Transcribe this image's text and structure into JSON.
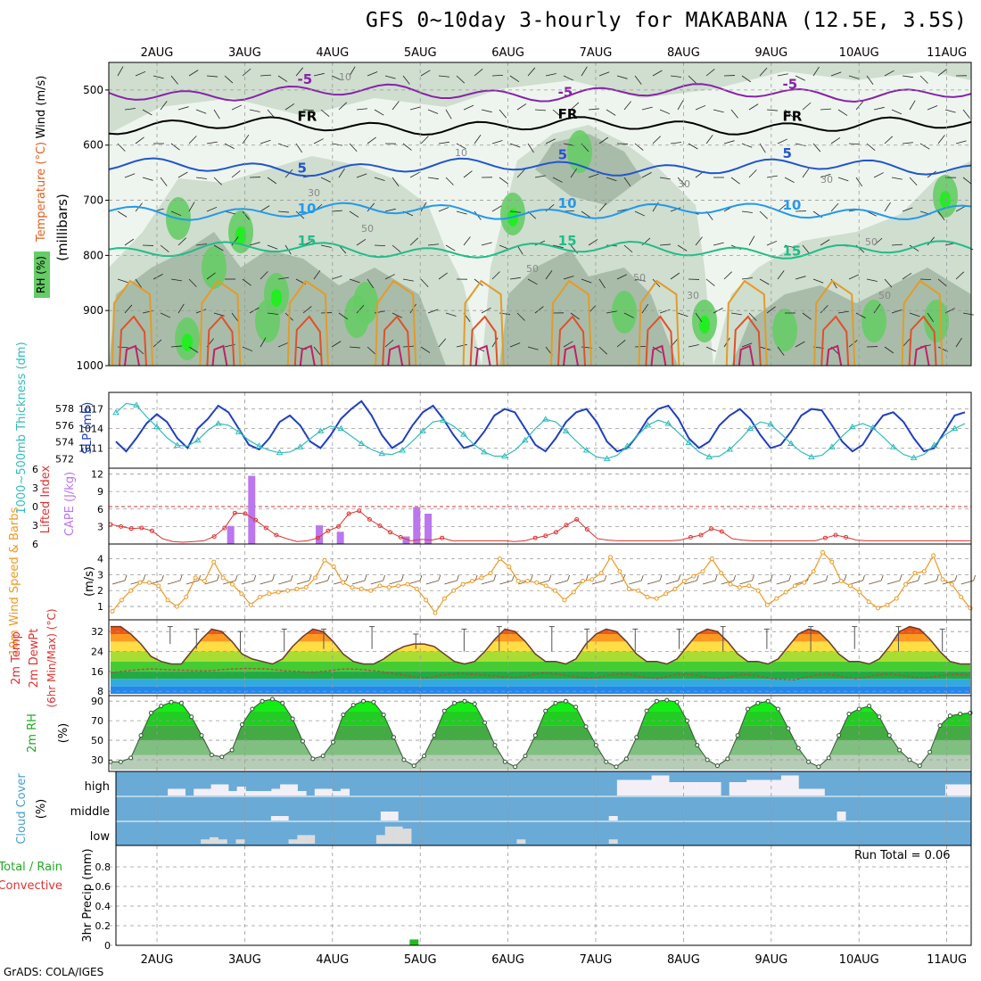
{
  "header": {
    "title": "GFS 0~10day 3-hourly for MAKABANA (12.5E, 3.5S)",
    "credit": "GrADS: COLA/IGES",
    "run_total": "Run Total = 0.06"
  },
  "colors": {
    "rh_light": "#eef5ee",
    "rh_mid": "#cfdecf",
    "rh_dark": "#a9bca9",
    "rh_green": "#66cc66",
    "rh_bright": "#22ee22",
    "temp_15": "#22bb88",
    "temp_10": "#2299ee",
    "temp_5": "#2255cc",
    "temp_m5": "#8822aa",
    "slp": "#1f3fbf",
    "thickness": "#33bbbb",
    "cape": "#bb77ee",
    "lifted": "#dd3333",
    "wind": "#ee9922",
    "cloud_bg": "#6aaad6",
    "cloud_fill": "#f3eff6",
    "precip": "#22bb22"
  },
  "chart_data": [
    {
      "type": "heatmap",
      "panel": "upper-air",
      "ylabel": "(millibars)",
      "axis_labels": [
        "RH (%)",
        "Temperature (°C)",
        "Wind (m/s)"
      ],
      "x_ticks": [
        "2AUG",
        "3AUG",
        "4AUG",
        "5AUG",
        "6AUG",
        "7AUG",
        "8AUG",
        "9AUG",
        "10AUG",
        "11AUG"
      ],
      "y_ticks": [
        500,
        600,
        700,
        800,
        900,
        1000
      ],
      "ylim": [
        1000,
        450
      ],
      "isotherms": [
        {
          "label": "-5",
          "level_mb": 505
        },
        {
          "label": "FR",
          "level_mb": 565
        },
        {
          "label": "5",
          "level_mb": 640
        },
        {
          "label": "10",
          "level_mb": 720
        },
        {
          "label": "15",
          "level_mb": 790
        }
      ],
      "rh_contour_labels": [
        "10",
        "30",
        "50"
      ]
    },
    {
      "type": "line",
      "panel": "slp-thickness",
      "axis_labels": [
        "1000~500mb Thickness (dm)",
        "SLP (mb)"
      ],
      "thickness_ticks": [
        572,
        574,
        576,
        578
      ],
      "slp_ticks": [
        1011,
        1014,
        1017
      ],
      "series": [
        {
          "name": "SLP (mb)",
          "values": [
            1012.0,
            1010.5,
            1012.5,
            1014.8,
            1016.2,
            1015.0,
            1012.5,
            1011.0,
            1014.0,
            1015.5,
            1017.5,
            1016.5,
            1014.0,
            1011.5,
            1010.8,
            1012.5,
            1015.0,
            1016.0,
            1014.5,
            1012.0,
            1011.0,
            1013.0,
            1015.5,
            1017.0,
            1018.2,
            1016.0,
            1013.0,
            1011.0,
            1012.0,
            1014.5,
            1016.5,
            1017.5,
            1015.5,
            1013.0,
            1011.0,
            1011.5,
            1013.5,
            1016.0,
            1017.0,
            1016.5,
            1014.0,
            1011.5,
            1010.5,
            1012.5,
            1015.0,
            1016.5,
            1017.0,
            1015.0,
            1012.0,
            1010.5,
            1011.0,
            1013.0,
            1015.5,
            1017.0,
            1017.5,
            1015.5,
            1012.5,
            1011.0,
            1012.0,
            1014.5,
            1016.0,
            1017.0,
            1015.5,
            1013.0,
            1011.0,
            1011.5,
            1013.5,
            1016.0,
            1017.0,
            1016.8,
            1014.5,
            1012.0,
            1010.5,
            1011.5,
            1014.0,
            1016.0,
            1016.5,
            1015.0,
            1012.5,
            1010.5,
            1011.0,
            1013.5,
            1016.0,
            1016.5
          ]
        },
        {
          "name": "Thickness (dm)",
          "values": [
            577.5,
            578.6,
            578.4,
            577.0,
            575.8,
            574.5,
            573.6,
            573.5,
            574.2,
            575.4,
            576.2,
            576.0,
            575.2,
            574.2,
            573.5,
            573.0,
            572.7,
            572.8,
            573.4,
            574.4,
            575.3,
            575.9,
            575.6,
            574.7,
            573.8,
            573.1,
            572.6,
            572.5,
            573.0,
            574.1,
            575.3,
            576.4,
            576.6,
            575.9,
            574.9,
            573.7,
            572.8,
            572.3,
            572.3,
            573.0,
            574.2,
            575.6,
            576.7,
            576.4,
            575.3,
            574.1,
            573.0,
            572.2,
            572.0,
            572.4,
            573.5,
            574.8,
            576.0,
            576.6,
            576.2,
            575.1,
            573.9,
            572.8,
            572.2,
            572.3,
            573.1,
            574.3,
            575.6,
            576.4,
            576.1,
            575.0,
            573.8,
            572.8,
            572.2,
            572.4,
            573.4,
            574.7,
            575.8,
            576.2,
            575.7,
            574.6,
            573.4,
            572.5,
            572.1,
            572.5,
            573.6,
            574.8,
            575.6,
            576.2
          ]
        }
      ]
    },
    {
      "type": "bar",
      "panel": "cape-li",
      "axis_labels": [
        "Lifted Index",
        "CAPE (J/kg)"
      ],
      "cape_ticks": [
        3,
        6,
        9,
        12
      ],
      "li_ticks": [
        6,
        3,
        0,
        -3,
        -6
      ],
      "cape_bars": [
        {
          "x": 0.84,
          "value": 3.1
        },
        {
          "x": 1.08,
          "value": 11.7
        },
        {
          "x": 1.85,
          "value": 3.2
        },
        {
          "x": 2.09,
          "value": 2.1
        },
        {
          "x": 2.84,
          "value": 1.3
        },
        {
          "x": 2.96,
          "value": 6.3
        },
        {
          "x": 3.09,
          "value": 5.2
        }
      ],
      "lifted_index": [
        3.5,
        3.8,
        4.1,
        4.0,
        4.4,
        5.5,
        5.9,
        6.0,
        5.9,
        5.8,
        5.2,
        4.0,
        1.9,
        2.0,
        2.9,
        4.0,
        5.0,
        5.5,
        5.9,
        5.8,
        5.4,
        4.4,
        3.8,
        2.0,
        1.6,
        2.8,
        3.7,
        4.6,
        5.3,
        5.8,
        5.6,
        5.7,
        5.4,
        5.8,
        5.8,
        5.8,
        5.8,
        5.8,
        5.8,
        5.9,
        5.8,
        5.4,
        5.1,
        4.6,
        3.6,
        2.8,
        4.2,
        5.5,
        5.7,
        5.8,
        5.8,
        5.8,
        5.8,
        5.8,
        5.8,
        5.7,
        5.3,
        5.0,
        4.1,
        4.5,
        5.5,
        5.7,
        5.8,
        5.8,
        5.8,
        5.8,
        5.8,
        5.8,
        5.8,
        5.4,
        5.0,
        5.3,
        5.7,
        5.8,
        5.8,
        5.8,
        5.8,
        5.8,
        5.8,
        5.8,
        5.8,
        5.8,
        5.8,
        5.8
      ]
    },
    {
      "type": "line",
      "panel": "wind10m",
      "axis_labels": [
        "10m Wind Speed & Barbs",
        "(m/s)"
      ],
      "y_ticks": [
        1,
        2,
        3,
        4
      ],
      "values": [
        0.7,
        1.4,
        2.0,
        2.5,
        2.5,
        2.3,
        1.4,
        1.0,
        1.6,
        2.8,
        2.6,
        3.8,
        2.8,
        2.4,
        1.8,
        1.1,
        1.6,
        1.8,
        1.9,
        2.0,
        2.1,
        2.2,
        2.8,
        3.9,
        3.5,
        2.5,
        2.2,
        2.1,
        2.0,
        2.3,
        2.2,
        2.3,
        2.4,
        2.1,
        1.4,
        0.6,
        1.5,
        2.0,
        2.4,
        2.6,
        2.8,
        3.1,
        4.0,
        3.5,
        2.6,
        2.6,
        2.5,
        2.3,
        2.0,
        1.4,
        1.9,
        2.6,
        2.7,
        3.1,
        4.1,
        3.2,
        2.1,
        2.0,
        1.6,
        1.5,
        1.8,
        2.1,
        2.6,
        2.9,
        3.2,
        4.0,
        3.1,
        2.4,
        2.2,
        2.3,
        2.0,
        1.1,
        1.5,
        1.9,
        2.3,
        2.5,
        3.2,
        4.4,
        3.8,
        2.6,
        2.3,
        1.9,
        1.3,
        0.9,
        1.1,
        1.5,
        2.4,
        3.1,
        3.2,
        4.2,
        2.7,
        2.4,
        1.6,
        0.9
      ]
    },
    {
      "type": "area",
      "panel": "temp2m",
      "axis_labels": [
        "2m Temp",
        "2m DewPt",
        "(6hr Min/Max) (°C)"
      ],
      "y_ticks": [
        8,
        16,
        24,
        32
      ],
      "temperature": [
        34,
        34,
        31,
        27,
        22,
        20,
        19,
        19,
        24,
        29,
        33,
        32,
        28,
        23,
        21,
        20,
        19,
        21,
        26,
        30,
        33,
        32,
        28,
        23,
        20,
        19,
        19,
        21,
        24,
        26,
        27,
        27,
        26,
        23,
        20,
        19,
        20,
        24,
        29,
        33,
        32,
        28,
        23,
        20,
        20,
        19,
        21,
        27,
        31,
        33,
        32,
        28,
        23,
        20,
        20,
        19,
        21,
        26,
        31,
        33,
        32,
        28,
        23,
        20,
        20,
        19,
        21,
        26,
        31,
        33,
        32,
        28,
        23,
        20,
        20,
        19,
        21,
        26,
        32,
        34,
        33,
        29,
        24,
        20,
        19,
        19
      ],
      "dewpoint": [
        15.5,
        16.0,
        16.4,
        16.8,
        17.0,
        16.8,
        16.6,
        16.5,
        16.3,
        16.2,
        16.4,
        16.8,
        17.0,
        17.2,
        17.1,
        17.0,
        16.6,
        16.2,
        16.0,
        15.7,
        15.8,
        16.2,
        16.8,
        17.0,
        16.8,
        16.4,
        16.0,
        15.4,
        14.8,
        14.0,
        13.4,
        13.6,
        14.6,
        15.0,
        15.2,
        14.8,
        14.5,
        14.2,
        13.8,
        13.5,
        14.0,
        15.0,
        15.4,
        15.0,
        14.4,
        13.8,
        13.3,
        13.5,
        14.4,
        15.0,
        14.8,
        14.0,
        13.4,
        13.2,
        14.2,
        15.0,
        14.8,
        14.0,
        13.3,
        13.2,
        14.0,
        14.8,
        14.5,
        13.8,
        13.0,
        12.8,
        12.6,
        13.6,
        14.4,
        14.9,
        14.4,
        13.6,
        13.2,
        13.8,
        14.6,
        15.0,
        14.6,
        14.0,
        13.4,
        13.6,
        14.2,
        14.8,
        14.8,
        14.6
      ],
      "max_whiskers": [
        {
          "x": 0.15,
          "hi": 34,
          "lo": 27
        },
        {
          "x": 0.45,
          "hi": 33,
          "lo": 25
        },
        {
          "x": 0.95,
          "hi": 32,
          "lo": 24
        },
        {
          "x": 1.45,
          "hi": 33,
          "lo": 24
        },
        {
          "x": 1.9,
          "hi": 33,
          "lo": 25
        },
        {
          "x": 2.45,
          "hi": 34,
          "lo": 25
        },
        {
          "x": 2.95,
          "hi": 31,
          "lo": 25
        },
        {
          "x": 3.5,
          "hi": 33,
          "lo": 24
        },
        {
          "x": 3.9,
          "hi": 34,
          "lo": 24
        },
        {
          "x": 4.5,
          "hi": 34,
          "lo": 24
        },
        {
          "x": 4.9,
          "hi": 33,
          "lo": 25
        },
        {
          "x": 5.45,
          "hi": 33,
          "lo": 24
        },
        {
          "x": 5.95,
          "hi": 33,
          "lo": 25
        },
        {
          "x": 6.45,
          "hi": 34,
          "lo": 24
        },
        {
          "x": 6.95,
          "hi": 33,
          "lo": 25
        },
        {
          "x": 7.45,
          "hi": 34,
          "lo": 24
        },
        {
          "x": 7.95,
          "hi": 34,
          "lo": 25
        },
        {
          "x": 8.45,
          "hi": 34,
          "lo": 24
        },
        {
          "x": 8.95,
          "hi": 33,
          "lo": 24
        },
        {
          "x": 9.45,
          "hi": 34,
          "lo": 24
        }
      ]
    },
    {
      "type": "area",
      "panel": "rh2m",
      "axis_labels": [
        "2m RH",
        "(%)"
      ],
      "y_ticks": [
        30,
        50,
        70,
        90
      ],
      "values": [
        28,
        28,
        32,
        55,
        78,
        85,
        89,
        88,
        74,
        55,
        35,
        33,
        40,
        66,
        82,
        90,
        92,
        88,
        72,
        49,
        31,
        34,
        48,
        76,
        86,
        90,
        89,
        76,
        53,
        30,
        24,
        34,
        55,
        80,
        88,
        90,
        87,
        68,
        45,
        28,
        23,
        34,
        55,
        80,
        88,
        90,
        84,
        64,
        45,
        28,
        23,
        31,
        53,
        80,
        90,
        91,
        89,
        70,
        45,
        30,
        24,
        31,
        55,
        82,
        88,
        90,
        82,
        62,
        42,
        28,
        23,
        32,
        55,
        77,
        82,
        85,
        74,
        55,
        40,
        30,
        24,
        38,
        65,
        75,
        77,
        78
      ]
    },
    {
      "type": "table",
      "panel": "cloud",
      "axis_labels": [
        "Cloud Cover",
        "(%)"
      ],
      "rows": [
        "high",
        "middle",
        "low"
      ],
      "high_pct": [
        0,
        0,
        0,
        0,
        0,
        0,
        30,
        30,
        0,
        30,
        30,
        50,
        50,
        20,
        40,
        20,
        20,
        20,
        30,
        50,
        50,
        20,
        0,
        30,
        30,
        20,
        30,
        0,
        0,
        0,
        0,
        0,
        0,
        0,
        0,
        0,
        0,
        0,
        0,
        0,
        0,
        0,
        0,
        0,
        0,
        0,
        0,
        0,
        0,
        0,
        0,
        0,
        0,
        0,
        0,
        0,
        0,
        0,
        70,
        70,
        70,
        70,
        90,
        90,
        60,
        60,
        60,
        60,
        60,
        60,
        0,
        60,
        60,
        70,
        70,
        70,
        70,
        90,
        90,
        30,
        30,
        30,
        0,
        0,
        0,
        0,
        0,
        0,
        0,
        0,
        0,
        0,
        0,
        0,
        0,
        0,
        50,
        50,
        50
      ],
      "middle_pct": [
        0,
        0,
        0,
        0,
        0,
        0,
        0,
        0,
        0,
        0,
        0,
        0,
        0,
        0,
        0,
        0,
        0,
        20,
        20,
        0,
        0,
        0,
        0,
        0,
        0,
        0,
        0,
        0,
        0,
        0,
        0,
        0,
        0,
        0,
        0,
        0,
        0,
        0,
        0,
        0,
        0,
        0,
        0,
        0,
        0,
        0,
        0,
        0,
        0,
        0,
        0,
        0,
        0,
        0,
        0,
        0,
        0,
        0,
        0,
        0,
        0,
        0,
        0,
        0,
        0,
        0,
        0,
        0,
        0,
        0,
        0,
        0,
        0,
        0,
        0,
        0,
        0,
        0,
        0,
        0,
        0,
        0,
        30,
        0,
        0,
        0,
        0,
        0,
        0,
        0,
        0,
        0,
        0,
        0,
        0,
        0,
        0,
        0,
        0
      ],
      "low_pct": [
        0,
        0,
        0,
        0,
        0,
        0,
        0,
        0,
        0,
        0,
        0,
        0,
        0,
        0,
        0,
        0,
        0,
        20,
        20,
        0,
        0,
        0,
        0,
        0,
        0,
        0,
        0,
        0,
        0,
        0,
        0,
        0,
        0,
        0,
        0,
        0,
        0,
        0,
        0,
        0,
        0,
        0,
        0,
        0,
        0,
        0,
        0,
        0,
        0,
        0,
        0,
        0,
        0,
        0,
        0,
        0,
        0,
        0,
        0,
        0,
        0,
        0,
        0,
        0,
        0,
        0,
        0,
        0,
        0,
        0,
        0,
        0,
        0,
        0,
        0,
        0,
        0,
        0,
        0,
        0,
        0,
        0,
        0,
        0,
        0,
        0,
        0,
        0,
        0,
        0,
        0,
        0,
        0,
        0,
        0,
        0,
        0,
        0,
        0
      ],
      "low_blocks": [
        {
          "x": 0.55,
          "pct": 20
        },
        {
          "x": 0.65,
          "pct": 30
        },
        {
          "x": 0.75,
          "pct": 20
        },
        {
          "x": 0.95,
          "pct": 20
        },
        {
          "x": 1.55,
          "pct": 20
        },
        {
          "x": 1.65,
          "pct": 40
        },
        {
          "x": 1.75,
          "pct": 40
        },
        {
          "x": 2.55,
          "pct": 40
        },
        {
          "x": 2.65,
          "pct": 80
        },
        {
          "x": 2.75,
          "pct": 80
        },
        {
          "x": 2.85,
          "pct": 70
        },
        {
          "x": 4.15,
          "pct": 20
        },
        {
          "x": 5.2,
          "pct": 20
        }
      ],
      "middle_blocks": [
        {
          "x": 1.35,
          "pct": 20
        },
        {
          "x": 1.45,
          "pct": 20
        },
        {
          "x": 2.6,
          "pct": 40
        },
        {
          "x": 2.7,
          "pct": 40
        },
        {
          "x": 5.2,
          "pct": 20
        },
        {
          "x": 7.8,
          "pct": 40
        }
      ]
    },
    {
      "type": "bar",
      "panel": "precip",
      "axis_labels": [
        "Total / Rain",
        "Convective",
        "3hr Precip (mm)"
      ],
      "y_ticks": [
        0,
        0.2,
        0.4,
        0.6,
        0.8
      ],
      "bars": [
        {
          "x": 2.93,
          "value": 0.06
        }
      ]
    }
  ]
}
